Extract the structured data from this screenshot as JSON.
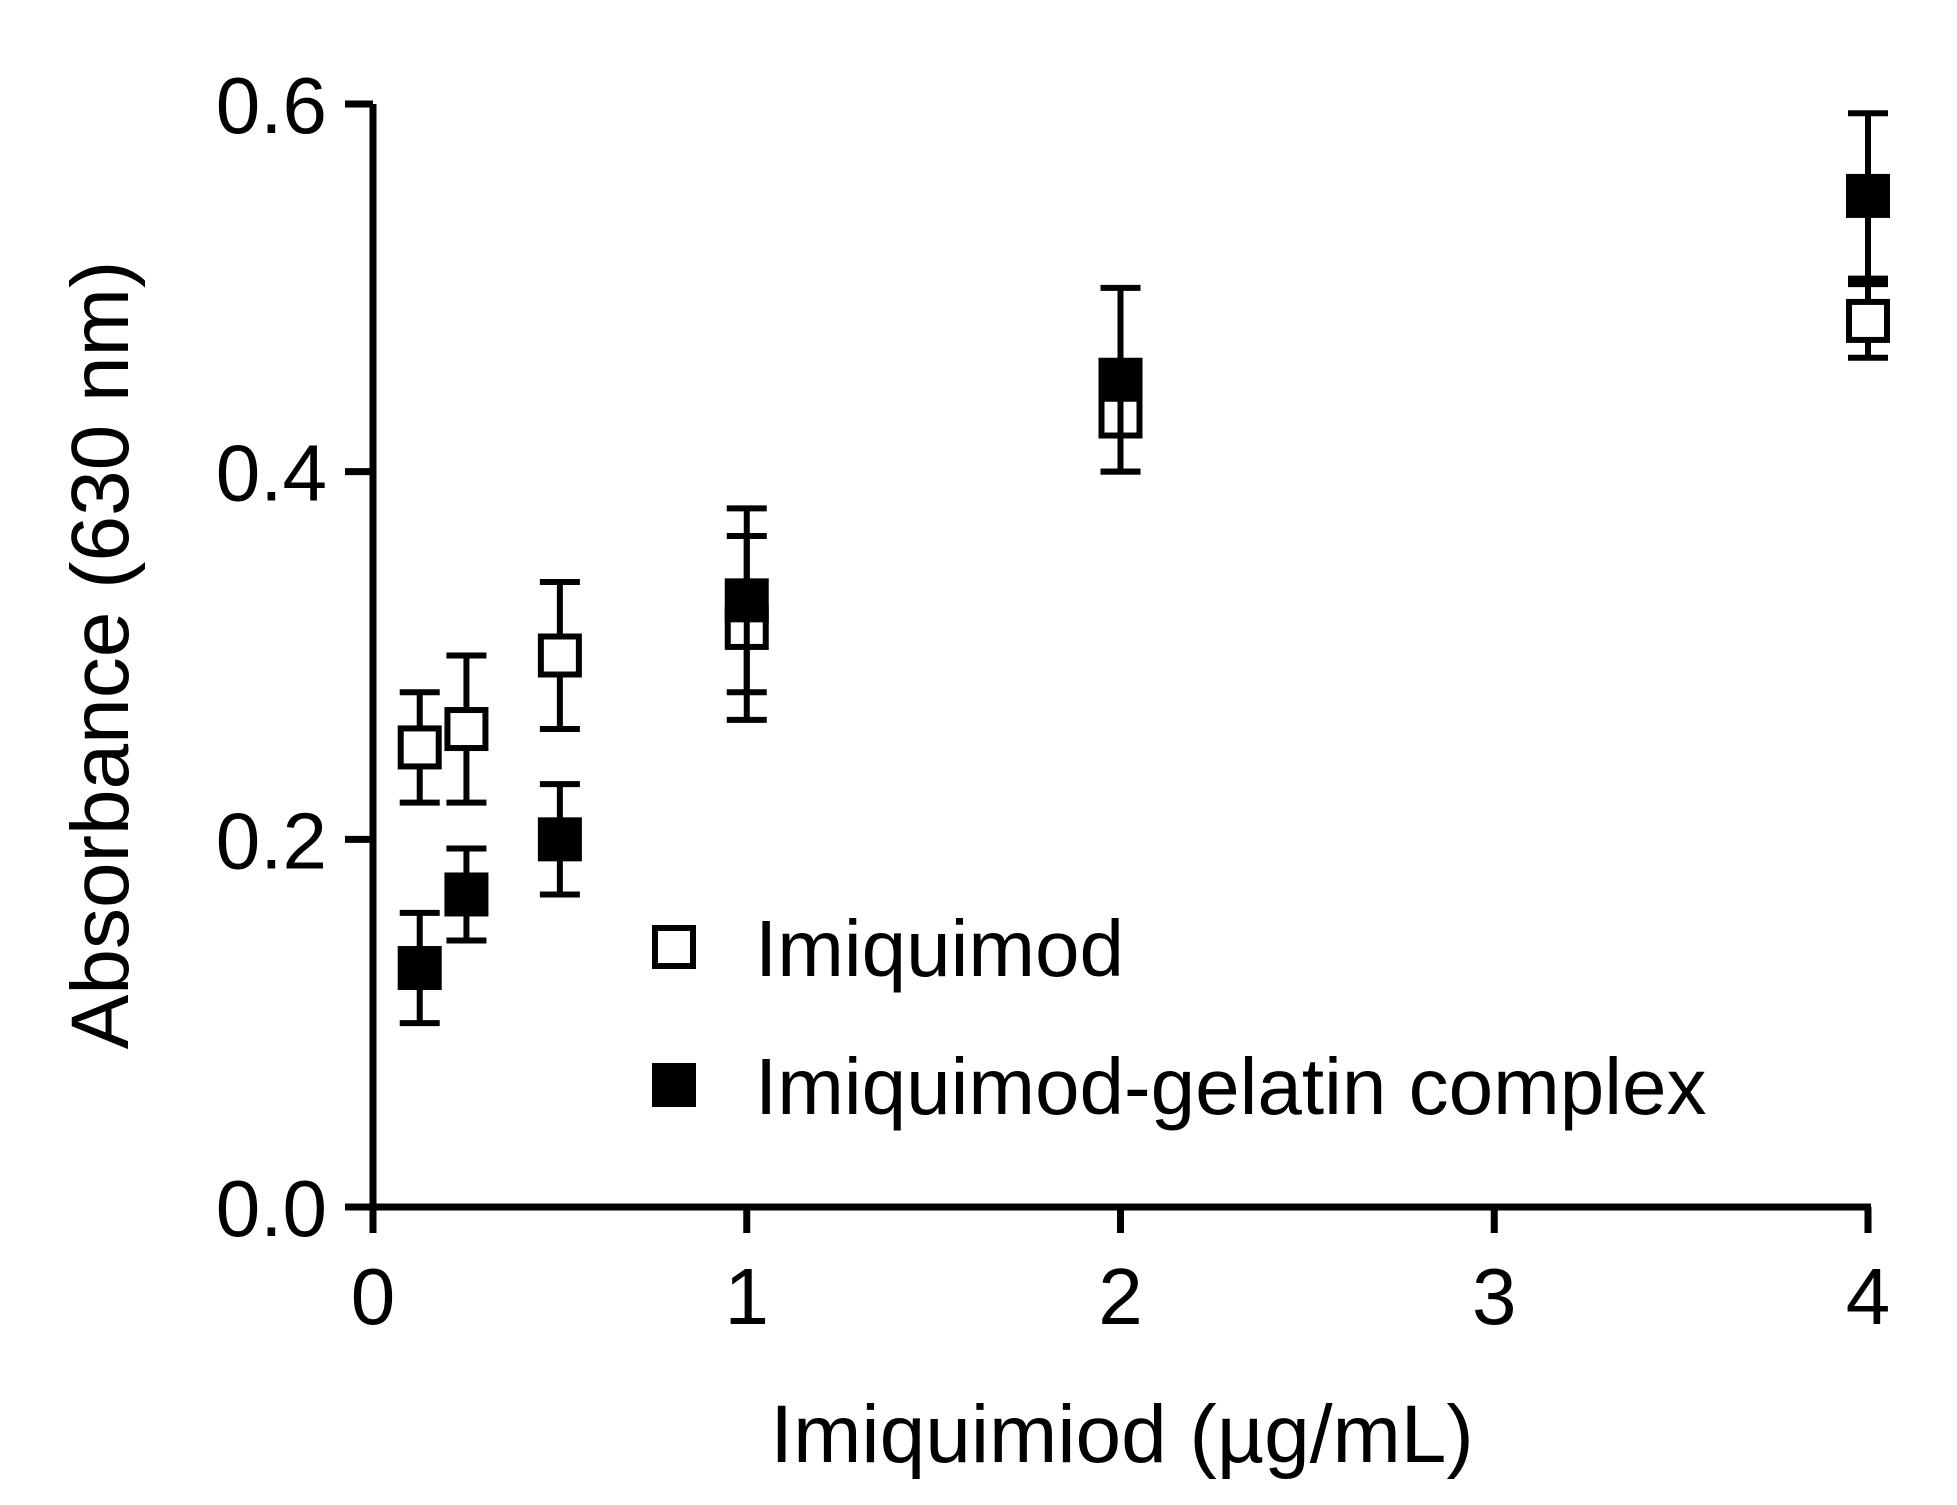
{
  "chart_data": {
    "type": "scatter",
    "title": "",
    "xlabel": "Imiquimiod (µg/mL)",
    "ylabel": "Absorbance (630 nm)",
    "xlim": [
      0,
      4
    ],
    "ylim": [
      0,
      0.6
    ],
    "xticks": [
      0,
      1,
      2,
      3,
      4
    ],
    "xtick_labels": [
      "0",
      "1",
      "2",
      "3",
      "4"
    ],
    "yticks": [
      0.0,
      0.2,
      0.4,
      0.6
    ],
    "ytick_labels": [
      "0.0",
      "0.2",
      "0.4",
      "0.6"
    ],
    "grid": false,
    "legend_position": "lower-center-right",
    "series": [
      {
        "name": "Imiquimod",
        "marker": "open-square",
        "color": "#000000",
        "x": [
          0.125,
          0.25,
          0.5,
          1,
          2,
          4
        ],
        "y": [
          0.25,
          0.26,
          0.3,
          0.315,
          0.43,
          0.482
        ],
        "err": [
          0.03,
          0.04,
          0.04,
          0.05,
          0.03,
          0.02
        ]
      },
      {
        "name": "Imiquimod-gelatin complex",
        "marker": "filled-square",
        "color": "#000000",
        "x": [
          0.125,
          0.25,
          0.5,
          1,
          2,
          4
        ],
        "y": [
          0.13,
          0.17,
          0.2,
          0.33,
          0.45,
          0.55
        ],
        "err": [
          0.03,
          0.025,
          0.03,
          0.05,
          0.05,
          0.045
        ]
      }
    ]
  }
}
